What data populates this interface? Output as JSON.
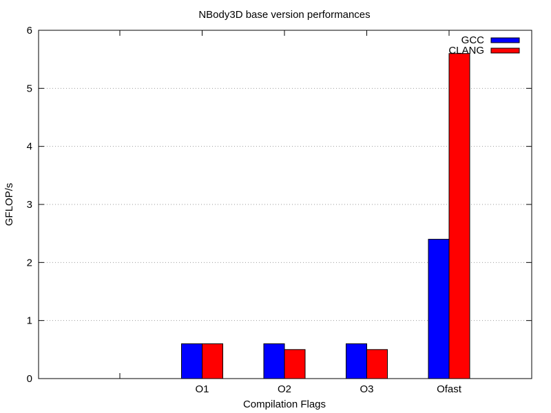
{
  "chart_data": {
    "type": "bar",
    "title": "NBody3D base version performances",
    "xlabel": "Compilation Flags",
    "ylabel": "GFLOP/s",
    "categories": [
      "",
      "O1",
      "O2",
      "O3",
      "Ofast"
    ],
    "series": [
      {
        "name": "GCC",
        "color": "#0000ff",
        "values": [
          null,
          0.6,
          0.6,
          0.6,
          2.4
        ]
      },
      {
        "name": "CLANG",
        "color": "#ff0000",
        "values": [
          null,
          0.6,
          0.5,
          0.5,
          5.6
        ]
      }
    ],
    "ylim": [
      0,
      6
    ],
    "yticks": [
      "0",
      "1",
      "2",
      "3",
      "4",
      "5",
      "6"
    ],
    "grid": "horizontal dotted",
    "legend_position": "top-right"
  }
}
